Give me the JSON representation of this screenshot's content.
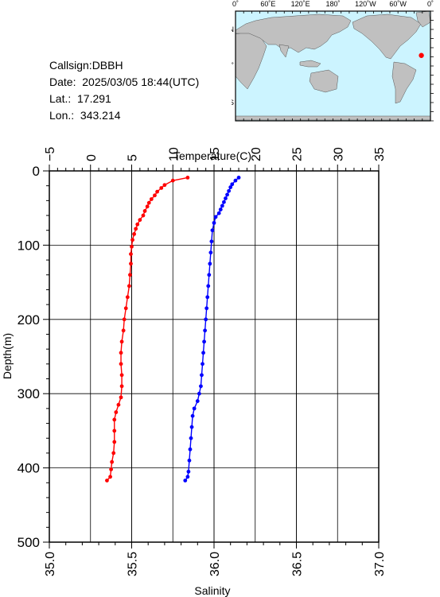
{
  "header": {
    "callsign": "Callsign:DBBH",
    "date": "Date:  2025/03/05 18:44(UTC)",
    "lat": "Lat.:  17.291",
    "lon": "Lon.:  343.214"
  },
  "map": {
    "top_labels": [
      "0˚",
      "60˚E",
      "120˚E",
      "180˚",
      "120˚W",
      "60˚W",
      "0˚"
    ],
    "lat_labels": [
      "60˚N",
      "0˚",
      "60˚S"
    ],
    "ocean_color": "#ccf4ff",
    "land_color": "#c0c0c0",
    "marker": {
      "lon": 343.214,
      "lat": 17.291,
      "color": "#ff0000"
    }
  },
  "chart_data": {
    "type": "scatter",
    "xlabel": "Salinity",
    "x2label": "Temperature(C)",
    "ylabel": "Depth(m)",
    "xlim": [
      35.0,
      37.0
    ],
    "x2lim": [
      -5,
      35
    ],
    "ylim": [
      0,
      500
    ],
    "xticks": [
      "35.0",
      "35.5",
      "36.0",
      "36.5",
      "37.0"
    ],
    "x2ticks": [
      "−5",
      "0",
      "5",
      "10",
      "15",
      "20",
      "25",
      "30",
      "35"
    ],
    "yticks": [
      "0",
      "100",
      "200",
      "300",
      "400",
      "500"
    ],
    "grid": true,
    "series": [
      {
        "axis": "temperature",
        "color": "#ff0000",
        "points": [
          [
            11.8,
            9
          ],
          [
            10.0,
            13
          ],
          [
            9.0,
            19
          ],
          [
            8.6,
            23
          ],
          [
            8.1,
            28
          ],
          [
            7.8,
            33
          ],
          [
            7.4,
            38
          ],
          [
            7.1,
            43
          ],
          [
            6.9,
            48
          ],
          [
            6.6,
            54
          ],
          [
            6.4,
            60
          ],
          [
            6.0,
            66
          ],
          [
            5.7,
            72
          ],
          [
            5.5,
            78
          ],
          [
            5.3,
            85
          ],
          [
            5.1,
            93
          ],
          [
            5.0,
            102
          ],
          [
            4.9,
            112
          ],
          [
            4.9,
            125
          ],
          [
            4.8,
            140
          ],
          [
            4.7,
            155
          ],
          [
            4.5,
            170
          ],
          [
            4.3,
            185
          ],
          [
            4.1,
            200
          ],
          [
            4.0,
            215
          ],
          [
            3.8,
            230
          ],
          [
            3.7,
            245
          ],
          [
            3.7,
            260
          ],
          [
            3.8,
            275
          ],
          [
            3.8,
            290
          ],
          [
            3.7,
            305
          ],
          [
            3.4,
            315
          ],
          [
            3.1,
            325
          ],
          [
            2.9,
            335
          ],
          [
            2.9,
            350
          ],
          [
            2.9,
            365
          ],
          [
            2.8,
            380
          ],
          [
            2.6,
            392
          ],
          [
            2.5,
            402
          ],
          [
            2.4,
            412
          ],
          [
            2.0,
            417
          ]
        ]
      },
      {
        "axis": "salinity",
        "color": "#0000ff",
        "points": [
          [
            36.15,
            9
          ],
          [
            36.13,
            13
          ],
          [
            36.11,
            18
          ],
          [
            36.1,
            22
          ],
          [
            36.09,
            27
          ],
          [
            36.08,
            32
          ],
          [
            36.07,
            37
          ],
          [
            36.06,
            42
          ],
          [
            36.05,
            47
          ],
          [
            36.04,
            52
          ],
          [
            36.03,
            57
          ],
          [
            36.01,
            62
          ],
          [
            36.0,
            70
          ],
          [
            35.99,
            80
          ],
          [
            35.985,
            95
          ],
          [
            35.98,
            110
          ],
          [
            35.975,
            125
          ],
          [
            35.97,
            140
          ],
          [
            35.965,
            155
          ],
          [
            35.96,
            170
          ],
          [
            35.955,
            185
          ],
          [
            35.95,
            200
          ],
          [
            35.945,
            215
          ],
          [
            35.94,
            230
          ],
          [
            35.935,
            245
          ],
          [
            35.93,
            260
          ],
          [
            35.925,
            275
          ],
          [
            35.92,
            290
          ],
          [
            35.91,
            300
          ],
          [
            35.9,
            310
          ],
          [
            35.88,
            320
          ],
          [
            35.87,
            330
          ],
          [
            35.865,
            345
          ],
          [
            35.86,
            360
          ],
          [
            35.855,
            375
          ],
          [
            35.85,
            390
          ],
          [
            35.845,
            405
          ],
          [
            35.84,
            412
          ],
          [
            35.825,
            417
          ]
        ]
      }
    ]
  }
}
